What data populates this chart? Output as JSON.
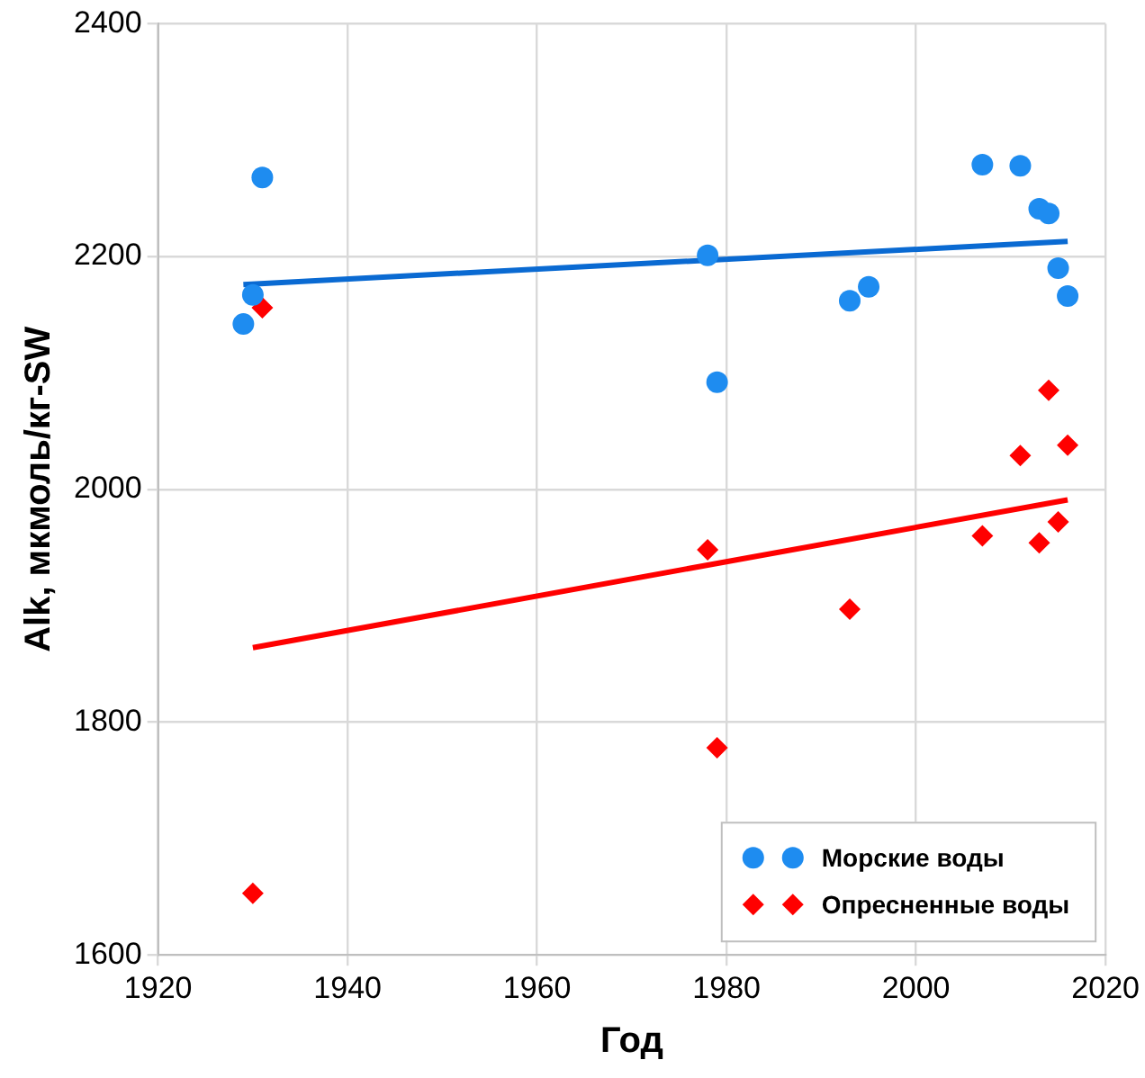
{
  "chart_data": {
    "type": "scatter",
    "xlabel": "Год",
    "ylabel": "Alk, мкмоль/кг-SW",
    "xlim": [
      1920,
      2020
    ],
    "xticks": [
      1920,
      1940,
      1960,
      1980,
      2000,
      2020
    ],
    "ylim": [
      1600,
      2400
    ],
    "yticks": [
      1600,
      1800,
      2000,
      2200,
      2400
    ],
    "grid": true,
    "legend": "bottom right",
    "series": [
      {
        "name": "Морские воды",
        "marker": "circle",
        "color": "#1e8cf0",
        "x": [
          1929,
          1930,
          1931,
          1978,
          1979,
          1993,
          1995,
          2007,
          2011,
          2013,
          2014,
          2015,
          2016
        ],
        "values": [
          2142,
          2167,
          2268,
          2201,
          2092,
          2162,
          2174,
          2279,
          2278,
          2241,
          2237,
          2190,
          2166
        ]
      },
      {
        "name": "Опресненные воды",
        "marker": "diamond",
        "color": "#ff0000",
        "x": [
          1930,
          1931,
          1978,
          1979,
          1993,
          2007,
          2011,
          2013,
          2014,
          2015,
          2016
        ],
        "values": [
          1653,
          2156,
          1948,
          1778,
          1897,
          1960,
          2029,
          1954,
          2085,
          1972,
          2038
        ]
      },
      {
        "type": "line",
        "marker": "none",
        "line_style": "solid",
        "color": "#0a6ad2",
        "x": [
          1929,
          2016
        ],
        "values": [
          2176,
          2213
        ]
      },
      {
        "type": "line",
        "marker": "none",
        "line_style": "solid",
        "color": "#ff0000",
        "x": [
          1930,
          2016
        ],
        "values": [
          1864,
          1991
        ]
      }
    ]
  }
}
